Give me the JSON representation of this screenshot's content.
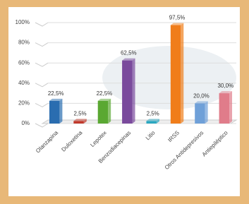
{
  "chart_data": {
    "type": "bar3d",
    "categories": [
      "Olanzapina",
      "Duloxetina",
      "Lepotex",
      "Benzodiacepinas",
      "Litio",
      "IRSS",
      "Otros Antidepresivos",
      "Antiepiléptico"
    ],
    "values": [
      22.5,
      2.5,
      22.5,
      62.5,
      2.5,
      97.5,
      20.0,
      30.0
    ],
    "value_labels": [
      "22,5%",
      "2,5%",
      "22,5%",
      "62,5%",
      "2,5%",
      "97,5%",
      "20,0%",
      "30,0%"
    ],
    "colors": [
      "#2a6db0",
      "#c0392b",
      "#5aa832",
      "#7a4a9c",
      "#2aa7c0",
      "#f07d1a",
      "#6fa0d8",
      "#e07c8a"
    ],
    "ylim": [
      0,
      100
    ],
    "yticks": [
      {
        "value": 0,
        "label": "0%"
      },
      {
        "value": 20,
        "label": "20%"
      },
      {
        "value": 40,
        "label": "40%"
      },
      {
        "value": 60,
        "label": "60%"
      },
      {
        "value": 80,
        "label": "80%"
      },
      {
        "value": 100,
        "label": "100%"
      }
    ],
    "grid": true
  }
}
